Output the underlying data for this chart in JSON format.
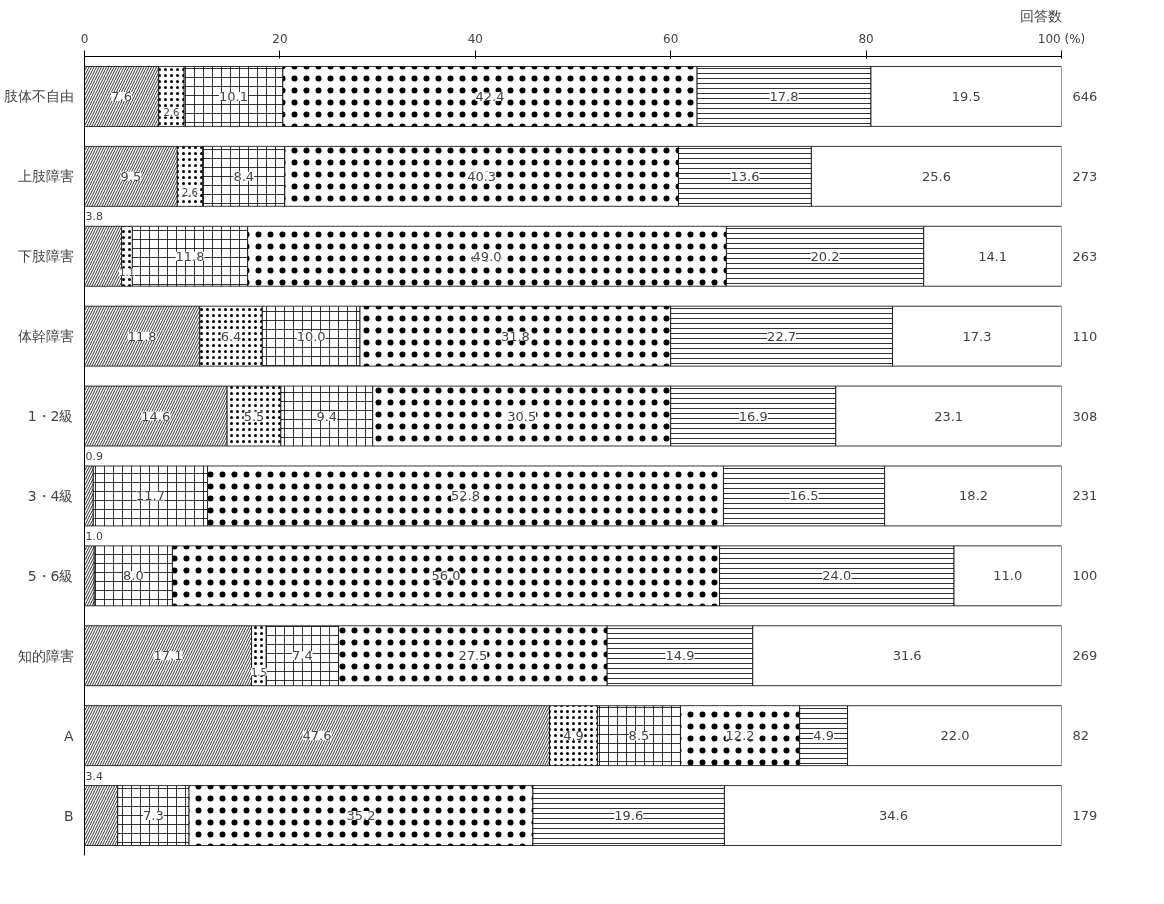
{
  "chart_data": {
    "type": "bar",
    "orientation": "horizontal",
    "stacked": true,
    "grid": false,
    "categories": [
      "肢体不自由",
      "上肢障害",
      "下肢障害",
      "体幹障害",
      "1・2級",
      "3・4級",
      "5・6級",
      "知的障害",
      "A",
      "B"
    ],
    "series": [
      {
        "color": "#000000",
        "values": [
          7.6,
          9.5,
          3.8,
          11.8,
          14.6,
          0.9,
          1.0,
          17.1,
          47.6,
          3.4
        ],
        "value_labels": [
          "7.6",
          "9.5",
          "3.8",
          "11.8",
          "14.6",
          "0.9",
          "1.0",
          "17.1",
          "47.6",
          "3.4"
        ]
      },
      {
        "color": "#000000",
        "values": [
          2.6,
          2.6,
          1.1,
          6.4,
          5.5,
          null,
          null,
          1.5,
          4.9,
          null
        ],
        "value_labels": [
          "2.6",
          "2.6",
          "1.1",
          "6.4",
          "5.5",
          null,
          null,
          "1.5",
          "4.9",
          null
        ]
      },
      {
        "color": "#000000",
        "values": [
          10.1,
          8.4,
          11.8,
          10.0,
          9.4,
          11.7,
          8.0,
          7.4,
          8.5,
          7.3
        ],
        "value_labels": [
          "10.1",
          "8.4",
          "11.8",
          "10.0",
          "9.4",
          "11.7",
          "8.0",
          "7.4",
          "8.5",
          "7.3"
        ]
      },
      {
        "color": "#000000",
        "values": [
          42.4,
          40.3,
          49.0,
          31.8,
          30.5,
          52.8,
          56.0,
          27.5,
          12.2,
          35.2
        ],
        "value_labels": [
          "42.4",
          "40.3",
          "49.0",
          "31.8",
          "30.5",
          "52.8",
          "56.0",
          "27.5",
          "12.2",
          "35.2"
        ]
      },
      {
        "color": "#000000",
        "values": [
          17.8,
          13.6,
          20.2,
          22.7,
          16.9,
          16.5,
          24.0,
          14.9,
          4.9,
          19.6
        ],
        "value_labels": [
          "17.8",
          "13.6",
          "20.2",
          "22.7",
          "16.9",
          "16.5",
          "24.0",
          "14.9",
          "4.9",
          "19.6"
        ]
      },
      {
        "color": "#000000",
        "values": [
          19.5,
          25.6,
          14.1,
          17.3,
          23.1,
          18.2,
          11.0,
          31.6,
          22.0,
          34.6
        ],
        "value_labels": [
          "19.5",
          "25.6",
          "14.1",
          "17.3",
          "23.1",
          "18.2",
          "11.0",
          "31.6",
          "22.0",
          "34.6"
        ]
      }
    ],
    "xlim": [
      0,
      100
    ],
    "xticks": [
      0,
      20,
      40,
      60,
      80,
      {
        "value": 100,
        "label": "100 (%)"
      }
    ],
    "annotations": [
      "回答数",
      "646",
      "273",
      "263",
      "110",
      "308",
      "231",
      "100",
      "269",
      "82",
      "179"
    ]
  }
}
